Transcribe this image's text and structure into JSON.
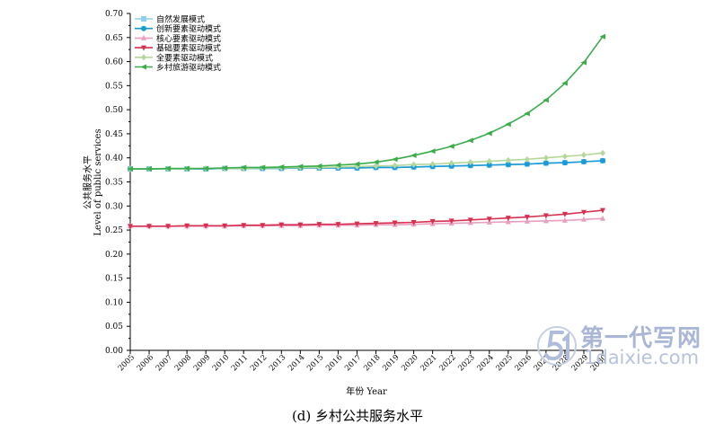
{
  "chart_data": {
    "type": "line",
    "title": "",
    "xlabel": "年份 Year",
    "ylabel_cn": "公共服务水平",
    "ylabel_en": "Level of public services",
    "ylim": [
      0,
      0.7
    ],
    "yticks": [
      "0.00",
      "0.05",
      "0.10",
      "0.15",
      "0.20",
      "0.25",
      "0.30",
      "0.35",
      "0.40",
      "0.45",
      "0.50",
      "0.55",
      "0.60",
      "0.65",
      "0.70"
    ],
    "x": [
      "2005",
      "2006",
      "2007",
      "2008",
      "2009",
      "2010",
      "2011",
      "2012",
      "2013",
      "2014",
      "2015",
      "2016",
      "2017",
      "2018",
      "2019",
      "2020",
      "2021",
      "2022",
      "2023",
      "2024",
      "2025",
      "2026",
      "2027",
      "2028",
      "2029",
      "2030"
    ],
    "legend_position": "top-left",
    "grid": false,
    "series": [
      {
        "name": "自然发展模式",
        "color": "#8fd0ec",
        "marker": "square",
        "values": [
          0.377,
          0.377,
          0.377,
          0.377,
          0.377,
          0.378,
          0.378,
          0.378,
          0.378,
          0.379,
          0.379,
          0.379,
          0.379,
          0.38,
          0.38,
          0.381,
          0.382,
          0.383,
          0.384,
          0.385,
          0.386,
          0.387,
          0.389,
          0.39,
          0.392,
          0.394
        ]
      },
      {
        "name": "创新要素驱动模式",
        "color": "#1a9ad6",
        "marker": "circle",
        "values": [
          0.377,
          0.377,
          0.377,
          0.377,
          0.377,
          0.378,
          0.378,
          0.378,
          0.378,
          0.379,
          0.379,
          0.379,
          0.379,
          0.38,
          0.38,
          0.381,
          0.382,
          0.383,
          0.384,
          0.385,
          0.386,
          0.387,
          0.389,
          0.39,
          0.392,
          0.394
        ]
      },
      {
        "name": "核心要素驱动模式",
        "color": "#e8a0c0",
        "marker": "triangle-up",
        "values": [
          0.258,
          0.258,
          0.258,
          0.258,
          0.258,
          0.258,
          0.259,
          0.259,
          0.259,
          0.259,
          0.26,
          0.26,
          0.26,
          0.261,
          0.261,
          0.262,
          0.263,
          0.264,
          0.265,
          0.266,
          0.267,
          0.268,
          0.269,
          0.27,
          0.272,
          0.274
        ]
      },
      {
        "name": "基础要素驱动模式",
        "color": "#d62f4f",
        "marker": "triangle-down",
        "values": [
          0.258,
          0.258,
          0.258,
          0.259,
          0.259,
          0.259,
          0.26,
          0.26,
          0.261,
          0.261,
          0.262,
          0.262,
          0.263,
          0.264,
          0.265,
          0.266,
          0.268,
          0.269,
          0.271,
          0.273,
          0.275,
          0.277,
          0.28,
          0.283,
          0.287,
          0.291
        ]
      },
      {
        "name": "全要素驱动模式",
        "color": "#b5d89a",
        "marker": "diamond",
        "values": [
          0.377,
          0.377,
          0.377,
          0.377,
          0.378,
          0.378,
          0.378,
          0.379,
          0.379,
          0.38,
          0.38,
          0.381,
          0.382,
          0.383,
          0.384,
          0.386,
          0.387,
          0.389,
          0.391,
          0.393,
          0.395,
          0.397,
          0.4,
          0.403,
          0.406,
          0.41
        ]
      },
      {
        "name": "乡村旅游驱动模式",
        "color": "#3aad4a",
        "marker": "triangle-left",
        "values": [
          0.377,
          0.377,
          0.378,
          0.378,
          0.378,
          0.379,
          0.38,
          0.38,
          0.381,
          0.382,
          0.383,
          0.385,
          0.387,
          0.391,
          0.397,
          0.405,
          0.414,
          0.424,
          0.436,
          0.451,
          0.47,
          0.492,
          0.52,
          0.555,
          0.598,
          0.652
        ]
      }
    ]
  },
  "caption": "(d) 乡村公共服务水平",
  "watermark": {
    "text_cn": "第一代写网",
    "text_url": "1daixie.com"
  }
}
